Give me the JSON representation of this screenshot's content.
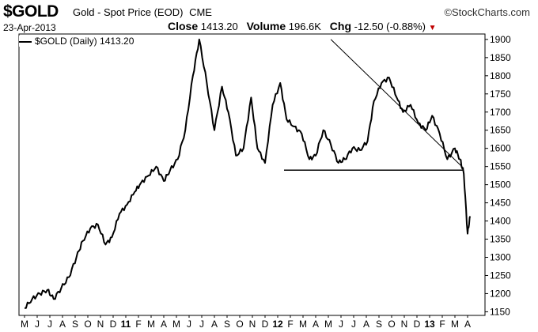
{
  "header": {
    "symbol": "$GOLD",
    "description": "Gold - Spot Price (EOD)",
    "exchange": "CME",
    "brand": "©StockCharts.com",
    "date": "23-Apr-2013",
    "close_label": "Close",
    "close_value": "1413.20",
    "volume_label": "Volume",
    "volume_value": "196.6K",
    "chg_label": "Chg",
    "chg_value": "-12.50 (-0.88%)",
    "chg_direction": "down"
  },
  "legend": {
    "label": "$GOLD (Daily) 1413.20"
  },
  "colors": {
    "price_line": "#000000",
    "chg_arrow": "#c00000"
  },
  "chart_data": {
    "type": "line",
    "title": "$GOLD Gold - Spot Price (EOD)",
    "x_tick_labels": [
      "M",
      "J",
      "J",
      "A",
      "S",
      "O",
      "N",
      "D",
      "11",
      "F",
      "M",
      "A",
      "M",
      "J",
      "J",
      "A",
      "S",
      "O",
      "N",
      "D",
      "12",
      "F",
      "M",
      "A",
      "M",
      "J",
      "J",
      "A",
      "S",
      "O",
      "N",
      "D",
      "13",
      "F",
      "M",
      "A"
    ],
    "y_ticks": [
      1150,
      1200,
      1250,
      1300,
      1350,
      1400,
      1450,
      1500,
      1550,
      1600,
      1650,
      1700,
      1750,
      1800,
      1850,
      1900
    ],
    "ylim": [
      1140,
      1915
    ],
    "xlim_index": [
      0,
      36
    ],
    "grid": false,
    "legend_position": "top-left",
    "series": [
      {
        "name": "$GOLD (Daily) 1413.20",
        "x_index": [
          0,
          0.6,
          1.2,
          1.8,
          2.3,
          2.9,
          3.5,
          4.1,
          4.6,
          5.2,
          5.8,
          6.4,
          6.9,
          7.5,
          8.1,
          8.7,
          9.2,
          9.8,
          10.4,
          11,
          11.5,
          12.1,
          12.7,
          13.3,
          13.8,
          14.4,
          15,
          15.6,
          16.1,
          16.7,
          17.3,
          17.9,
          18.4,
          19,
          19.6,
          20.2,
          20.7,
          21.3,
          21.9,
          22.5,
          23,
          23.6,
          24.2,
          24.8,
          25.3,
          25.9,
          26.5,
          27.1,
          27.6,
          28.2,
          28.8,
          29.4,
          29.9,
          30.5,
          31.1,
          31.7,
          32.2,
          32.8,
          33.4,
          34,
          34.4,
          34.7,
          35,
          35.2
        ],
        "values": [
          1160,
          1185,
          1200,
          1210,
          1185,
          1215,
          1245,
          1300,
          1345,
          1380,
          1390,
          1335,
          1355,
          1420,
          1445,
          1480,
          1505,
          1525,
          1550,
          1510,
          1540,
          1570,
          1650,
          1800,
          1900,
          1780,
          1650,
          1770,
          1700,
          1580,
          1600,
          1740,
          1600,
          1560,
          1720,
          1780,
          1680,
          1660,
          1640,
          1570,
          1580,
          1650,
          1610,
          1560,
          1570,
          1600,
          1595,
          1620,
          1730,
          1780,
          1795,
          1740,
          1700,
          1720,
          1670,
          1650,
          1690,
          1640,
          1570,
          1600,
          1570,
          1530,
          1365,
          1413
        ]
      }
    ],
    "annotations": [
      {
        "type": "trendline",
        "points": [
          [
            24.2,
            1900
          ],
          [
            34.7,
            1545
          ]
        ]
      },
      {
        "type": "support_line",
        "points": [
          [
            20.5,
            1540
          ],
          [
            34.7,
            1540
          ]
        ]
      }
    ]
  }
}
